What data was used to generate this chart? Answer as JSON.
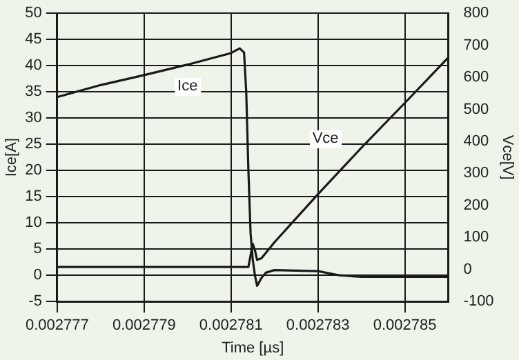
{
  "chart_data": {
    "type": "line",
    "xlabel": "Time [µs]",
    "ylabel": "Ice[A]",
    "y2label": "Vce[V]",
    "xlim": [
      0.002777,
      0.002786
    ],
    "xticks": [
      0.002777,
      0.002779,
      0.002781,
      0.002783,
      0.002785
    ],
    "ylim": [
      -5,
      50
    ],
    "yticks": [
      -5,
      0,
      5,
      10,
      15,
      20,
      25,
      30,
      35,
      40,
      45,
      50
    ],
    "y2lim": [
      -100,
      800
    ],
    "y2ticks": [
      -100,
      0,
      100,
      200,
      300,
      400,
      500,
      600,
      700,
      800
    ],
    "grid": true,
    "legend": false,
    "marker": "none",
    "line_style": "solid",
    "series": [
      {
        "name": "Ice",
        "color": "#1a1a1a",
        "x": [
          0.002777,
          0.002778,
          0.002779,
          0.00278,
          0.002781,
          0.0027812,
          0.0027813,
          0.00278135,
          0.0027814,
          0.00278145,
          0.0027815,
          0.00278155,
          0.0027816,
          0.0027817,
          0.0027818,
          0.002782,
          0.002783,
          0.0027835,
          0.002784,
          0.002786
        ],
        "values": [
          34,
          36.3,
          38.2,
          40.2,
          42.4,
          43.3,
          42.5,
          35,
          20,
          8,
          3,
          0,
          -2,
          -0.5,
          0.5,
          1,
          0.8,
          0,
          -0.3,
          -0.3
        ]
      },
      {
        "name": "Vce",
        "color": "#1a1a1a",
        "axis": "y2",
        "x": [
          0.002777,
          0.00278,
          0.002781,
          0.0027814,
          0.0027815,
          0.00278155,
          0.0027816,
          0.0027817,
          0.002782,
          0.002783,
          0.002784,
          0.002785,
          0.002786
        ],
        "values": [
          8,
          8,
          8,
          8,
          80,
          60,
          30,
          35,
          85,
          235,
          380,
          520,
          662
        ]
      }
    ]
  }
}
